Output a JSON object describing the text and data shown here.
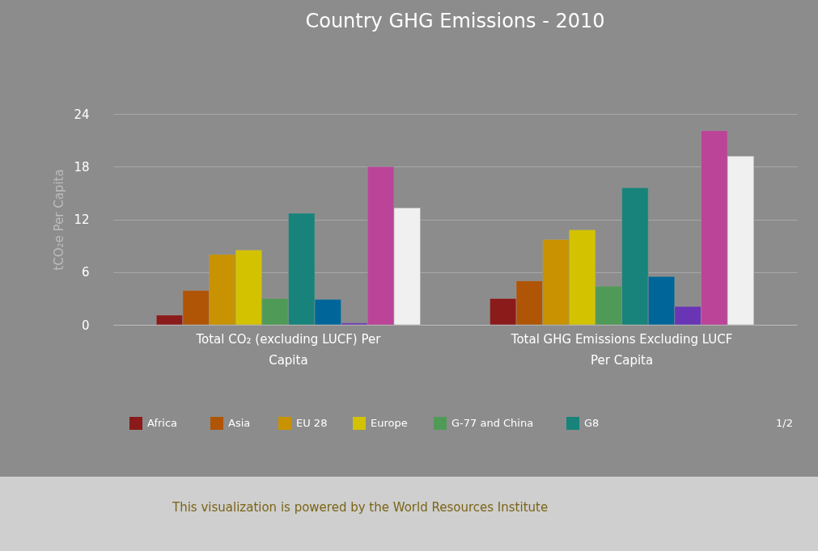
{
  "chart_data": {
    "type": "bar",
    "title": "Country GHG Emissions - 2010",
    "categories": [
      "Total CO₂ (excluding LUCF) Per Capita",
      "Total GHG Emissions Excluding LUCF Per Capita"
    ],
    "ylabel": "tCO₂e Per Capita",
    "ylim": [
      0,
      24
    ],
    "yticks": [
      0,
      6,
      12,
      18,
      24
    ],
    "grid": "y",
    "legend": "bottom",
    "series": [
      {
        "name": "Africa",
        "color": "#8b1a1a",
        "values": [
          1.1,
          3.0
        ]
      },
      {
        "name": "Asia",
        "color": "#b05506",
        "values": [
          3.9,
          5.0
        ]
      },
      {
        "name": "EU 28",
        "color": "#c89200",
        "values": [
          8.0,
          9.7
        ]
      },
      {
        "name": "Europe",
        "color": "#d2c200",
        "values": [
          8.5,
          10.8
        ]
      },
      {
        "name": "G-77 and China",
        "color": "#509a58",
        "values": [
          3.0,
          4.4
        ]
      },
      {
        "name": "G8",
        "color": "#17837a",
        "values": [
          12.7,
          15.6
        ]
      },
      {
        "color": "#006699",
        "values": [
          2.9,
          5.5
        ]
      },
      {
        "color": "#6a35b5",
        "values": [
          0.2,
          2.1
        ]
      },
      {
        "color": "#bb4498",
        "values": [
          18.0,
          22.1
        ]
      },
      {
        "color": "#f0f0f0",
        "values": [
          13.3,
          19.2
        ]
      }
    ],
    "annotations": [
      "1/2",
      "This visualization is powered by the World Resources Institute"
    ]
  }
}
